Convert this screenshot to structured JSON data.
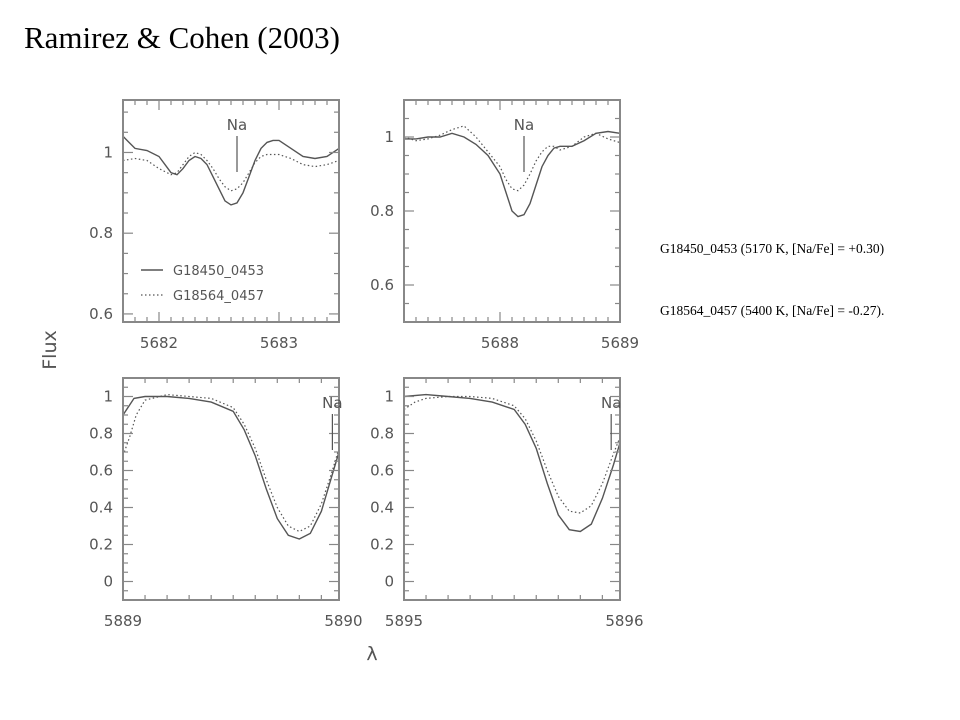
{
  "title": "Ramirez & Cohen (2003)",
  "captions": [
    "G18450_0453 (5170 K, [Na/Fe] = +0.30)",
    "G18564_0457 (5400 K, [Na/Fe] = -0.27)."
  ],
  "chart_data": {
    "type": "line",
    "ylabel": "Flux",
    "xlabel": "λ",
    "grid": false,
    "legend": {
      "placement": "bottom-left of first panel",
      "entries": [
        {
          "name": "G18450_0453",
          "style": "solid"
        },
        {
          "name": "G18564_0457",
          "style": "dotted"
        }
      ]
    },
    "colors": {
      "lines": "#555555",
      "frame": "#888888"
    },
    "panels": [
      {
        "marker": {
          "label": "Na",
          "x": 5682.65
        },
        "xlim": [
          5681.7,
          5683.5
        ],
        "ylim": [
          0.58,
          1.13
        ],
        "xticks": [
          5682,
          5683
        ],
        "yticks": [
          0.6,
          0.8,
          1
        ],
        "series": [
          {
            "name": "G18450_0453",
            "style": "solid",
            "x": [
              5681.7,
              5681.8,
              5681.9,
              5682.0,
              5682.05,
              5682.1,
              5682.15,
              5682.2,
              5682.25,
              5682.3,
              5682.35,
              5682.4,
              5682.45,
              5682.5,
              5682.55,
              5682.6,
              5682.65,
              5682.7,
              5682.75,
              5682.8,
              5682.85,
              5682.9,
              5682.95,
              5683.0,
              5683.1,
              5683.2,
              5683.3,
              5683.4,
              5683.5
            ],
            "y": [
              1.04,
              1.01,
              1.005,
              0.99,
              0.97,
              0.95,
              0.945,
              0.96,
              0.98,
              0.99,
              0.985,
              0.97,
              0.94,
              0.91,
              0.88,
              0.87,
              0.875,
              0.9,
              0.94,
              0.98,
              1.01,
              1.025,
              1.03,
              1.03,
              1.01,
              0.99,
              0.985,
              0.99,
              1.01
            ]
          },
          {
            "name": "G18564_0457",
            "style": "dotted",
            "x": [
              5681.7,
              5681.8,
              5681.9,
              5682.0,
              5682.1,
              5682.15,
              5682.2,
              5682.25,
              5682.3,
              5682.35,
              5682.4,
              5682.45,
              5682.5,
              5682.55,
              5682.6,
              5682.65,
              5682.7,
              5682.75,
              5682.8,
              5682.85,
              5682.9,
              5683.0,
              5683.1,
              5683.2,
              5683.3,
              5683.4,
              5683.5
            ],
            "y": [
              0.98,
              0.985,
              0.98,
              0.96,
              0.945,
              0.95,
              0.97,
              0.99,
              1.0,
              0.995,
              0.98,
              0.96,
              0.935,
              0.915,
              0.905,
              0.91,
              0.925,
              0.95,
              0.975,
              0.99,
              0.995,
              0.995,
              0.985,
              0.97,
              0.965,
              0.97,
              0.98
            ]
          }
        ]
      },
      {
        "marker": {
          "label": "Na",
          "x": 5688.2
        },
        "xlim": [
          5687.2,
          5689.0
        ],
        "ylim": [
          0.5,
          1.1
        ],
        "xticks": [
          5688,
          5689
        ],
        "yticks": [
          0.6,
          0.8,
          1
        ],
        "series": [
          {
            "name": "G18450_0453",
            "style": "solid",
            "x": [
              5687.2,
              5687.3,
              5687.4,
              5687.5,
              5687.6,
              5687.7,
              5687.8,
              5687.9,
              5688.0,
              5688.05,
              5688.1,
              5688.15,
              5688.2,
              5688.25,
              5688.3,
              5688.35,
              5688.4,
              5688.45,
              5688.5,
              5688.6,
              5688.7,
              5688.8,
              5688.9,
              5689.0
            ],
            "y": [
              0.995,
              0.995,
              1.0,
              1.0,
              1.01,
              1.0,
              0.98,
              0.95,
              0.9,
              0.85,
              0.8,
              0.785,
              0.79,
              0.82,
              0.87,
              0.92,
              0.95,
              0.97,
              0.975,
              0.975,
              0.99,
              1.01,
              1.015,
              1.01
            ]
          },
          {
            "name": "G18564_0457",
            "style": "dotted",
            "x": [
              5687.2,
              5687.3,
              5687.4,
              5687.5,
              5687.6,
              5687.7,
              5687.8,
              5687.9,
              5688.0,
              5688.05,
              5688.1,
              5688.15,
              5688.2,
              5688.25,
              5688.3,
              5688.35,
              5688.4,
              5688.45,
              5688.5,
              5688.6,
              5688.7,
              5688.8,
              5688.9,
              5689.0
            ],
            "y": [
              1.0,
              0.99,
              0.995,
              1.005,
              1.02,
              1.03,
              1.0,
              0.96,
              0.92,
              0.885,
              0.86,
              0.855,
              0.87,
              0.9,
              0.935,
              0.96,
              0.975,
              0.975,
              0.965,
              0.975,
              1.0,
              1.01,
              0.995,
              0.985
            ]
          }
        ]
      },
      {
        "marker": {
          "label": "Na",
          "x": 5889.95
        },
        "xlim": [
          5889.0,
          5889.98
        ],
        "ylim": [
          -0.1,
          1.1
        ],
        "xticks": [
          5889,
          5890
        ],
        "yticks": [
          0,
          0.2,
          0.4,
          0.6,
          0.8,
          1
        ],
        "series": [
          {
            "name": "G18450_0453",
            "style": "solid",
            "x": [
              5889.0,
              5889.05,
              5889.1,
              5889.2,
              5889.3,
              5889.4,
              5889.5,
              5889.55,
              5889.6,
              5889.65,
              5889.7,
              5889.75,
              5889.8,
              5889.85,
              5889.9,
              5889.95,
              5889.98
            ],
            "y": [
              0.9,
              0.99,
              1.0,
              1.0,
              0.99,
              0.97,
              0.92,
              0.82,
              0.68,
              0.5,
              0.34,
              0.25,
              0.23,
              0.26,
              0.38,
              0.58,
              0.7
            ]
          },
          {
            "name": "G18564_0457",
            "style": "dotted",
            "x": [
              5889.0,
              5889.03,
              5889.06,
              5889.1,
              5889.2,
              5889.3,
              5889.4,
              5889.5,
              5889.55,
              5889.6,
              5889.65,
              5889.7,
              5889.75,
              5889.8,
              5889.85,
              5889.9,
              5889.95,
              5889.98
            ],
            "y": [
              0.68,
              0.78,
              0.9,
              0.98,
              1.01,
              1.0,
              0.99,
              0.94,
              0.85,
              0.72,
              0.55,
              0.4,
              0.3,
              0.27,
              0.3,
              0.42,
              0.6,
              0.72
            ]
          }
        ]
      },
      {
        "marker": {
          "label": "Na",
          "x": 5895.94
        },
        "xlim": [
          5895.0,
          5895.98
        ],
        "ylim": [
          -0.1,
          1.1
        ],
        "xticks": [
          5895,
          5896
        ],
        "yticks": [
          0,
          0.2,
          0.4,
          0.6,
          0.8,
          1
        ],
        "series": [
          {
            "name": "G18450_0453",
            "style": "solid",
            "x": [
              5895.0,
              5895.1,
              5895.2,
              5895.3,
              5895.4,
              5895.5,
              5895.55,
              5895.6,
              5895.65,
              5895.7,
              5895.75,
              5895.8,
              5895.85,
              5895.9,
              5895.95,
              5895.98
            ],
            "y": [
              1.0,
              1.01,
              1.0,
              0.99,
              0.97,
              0.93,
              0.85,
              0.72,
              0.53,
              0.36,
              0.28,
              0.27,
              0.31,
              0.45,
              0.63,
              0.75
            ]
          },
          {
            "name": "G18564_0457",
            "style": "dotted",
            "x": [
              5895.0,
              5895.05,
              5895.1,
              5895.2,
              5895.3,
              5895.4,
              5895.5,
              5895.55,
              5895.6,
              5895.65,
              5895.7,
              5895.75,
              5895.8,
              5895.85,
              5895.9,
              5895.95,
              5895.98
            ],
            "y": [
              0.93,
              0.97,
              0.99,
              1.0,
              1.0,
              0.99,
              0.95,
              0.88,
              0.76,
              0.6,
              0.46,
              0.38,
              0.37,
              0.41,
              0.53,
              0.69,
              0.78
            ]
          }
        ]
      }
    ]
  }
}
